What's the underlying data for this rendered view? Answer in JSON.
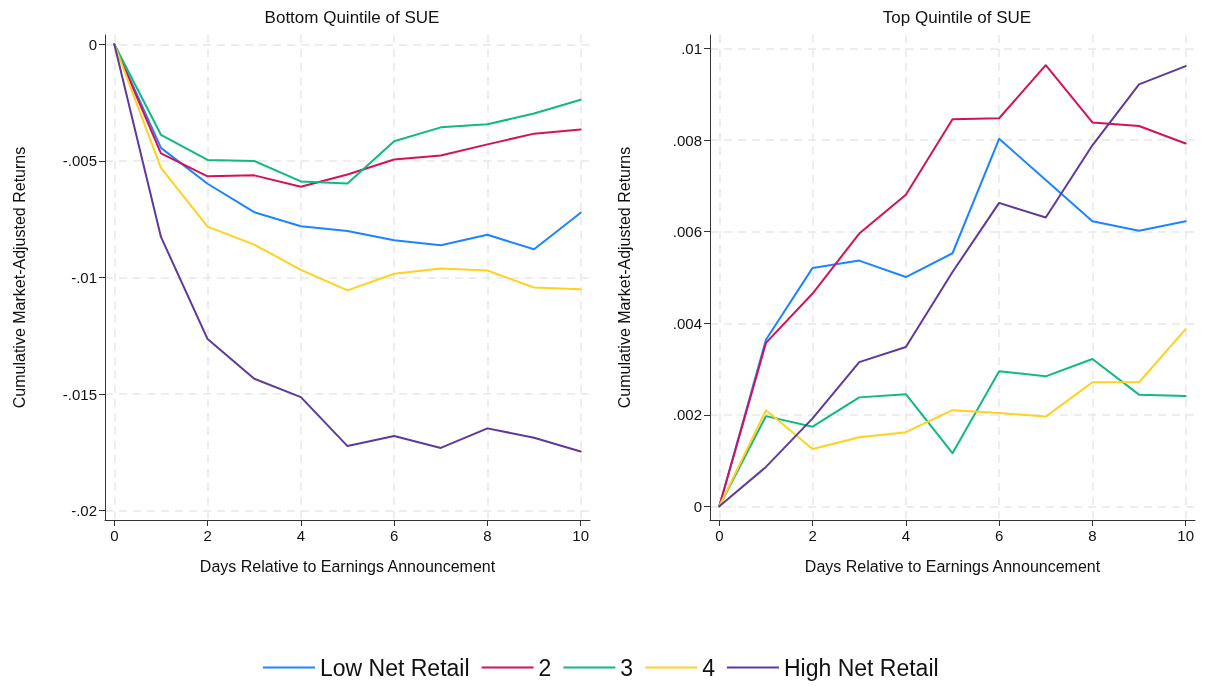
{
  "chart_data": [
    {
      "type": "line",
      "title": "Bottom Quintile of SUE",
      "xlabel": "Days Relative to Earnings Announcement",
      "ylabel": "Cumulative Market-Adjusted Returns",
      "x": [
        0,
        1,
        2,
        3,
        4,
        5,
        6,
        7,
        8,
        9,
        10
      ],
      "xlim": [
        -0.2,
        10.2
      ],
      "xticks": [
        0,
        2,
        4,
        6,
        8,
        10
      ],
      "ylim": [
        -0.0204,
        0.0004
      ],
      "yticks": [
        {
          "value": -0.02,
          "label": "-.02"
        },
        {
          "value": -0.015,
          "label": "-.015"
        },
        {
          "value": -0.01,
          "label": "-.01"
        },
        {
          "value": -0.005,
          "label": "-.005"
        },
        0
      ],
      "grid": true,
      "legend": "bottom",
      "line_style": "solid",
      "marker": "none",
      "series": [
        {
          "name": "Low Net Retail",
          "color": "#1a85ff",
          "values": [
            0,
            -0.00444,
            -0.00598,
            -0.0072,
            -0.0078,
            -0.00801,
            -0.0084,
            -0.00862,
            -0.00817,
            -0.00879,
            -0.00722
          ]
        },
        {
          "name": "2",
          "color": "#d41159",
          "values": [
            0,
            -0.00468,
            -0.00566,
            -0.00562,
            -0.00611,
            -0.00558,
            -0.00494,
            -0.00477,
            -0.00429,
            -0.00383,
            -0.00365
          ]
        },
        {
          "name": "3",
          "color": "#10b981",
          "values": [
            0,
            -0.00388,
            -0.00496,
            -0.005,
            -0.00588,
            -0.00597,
            -0.00416,
            -0.00356,
            -0.00343,
            -0.00297,
            -0.00238
          ]
        },
        {
          "name": "4",
          "color": "#ffd21f",
          "values": [
            0,
            -0.0053,
            -0.00782,
            -0.00859,
            -0.00967,
            -0.01055,
            -0.00984,
            -0.00961,
            -0.0097,
            -0.01043,
            -0.0105
          ]
        },
        {
          "name": "High Net Retail",
          "color": "#5d3a9b",
          "values": [
            0,
            -0.00826,
            -0.01264,
            -0.01434,
            -0.01513,
            -0.01723,
            -0.0168,
            -0.01731,
            -0.01647,
            -0.01687,
            -0.01746
          ]
        }
      ]
    },
    {
      "type": "line",
      "title": "Top Quintile of SUE",
      "xlabel": "Days Relative to Earnings Announcement",
      "ylabel": "Cumulative Market-Adjusted Returns",
      "x": [
        0,
        1,
        2,
        3,
        4,
        5,
        6,
        7,
        8,
        9,
        10
      ],
      "xlim": [
        -0.2,
        10.2
      ],
      "xticks": [
        0,
        2,
        4,
        6,
        8,
        10
      ],
      "ylim": [
        -0.0003,
        0.0103
      ],
      "yticks": [
        0,
        {
          "value": 0.002,
          "label": ".002"
        },
        {
          "value": 0.004,
          "label": ".004"
        },
        {
          "value": 0.006,
          "label": ".006"
        },
        {
          "value": 0.008,
          "label": ".008"
        },
        {
          "value": 0.01,
          "label": ".01"
        }
      ],
      "grid": true,
      "line_style": "solid",
      "marker": "none",
      "series": [
        {
          "color": "#1a85ff",
          "values": [
            0,
            0.00364,
            0.00521,
            0.00537,
            0.00501,
            0.00553,
            0.00803,
            0.00713,
            0.00623,
            0.00602,
            0.00623
          ]
        },
        {
          "color": "#d41159",
          "values": [
            0,
            0.00357,
            0.00465,
            0.00596,
            0.00681,
            0.00846,
            0.00848,
            0.00964,
            0.00839,
            0.00831,
            0.00793
          ]
        },
        {
          "color": "#10b981",
          "values": [
            0,
            0.00197,
            0.00174,
            0.00238,
            0.00245,
            0.00116,
            0.00295,
            0.00284,
            0.00322,
            0.00244,
            0.00241
          ]
        },
        {
          "color": "#ffd21f",
          "values": [
            0,
            0.0021,
            0.00125,
            0.00151,
            0.00162,
            0.0021,
            0.00204,
            0.00196,
            0.00271,
            0.00271,
            0.00387
          ]
        },
        {
          "color": "#5d3a9b",
          "values": [
            0,
            0.00086,
            0.00192,
            0.00315,
            0.00348,
            0.00512,
            0.00663,
            0.00631,
            0.00789,
            0.00922,
            0.00962
          ]
        }
      ]
    }
  ]
}
